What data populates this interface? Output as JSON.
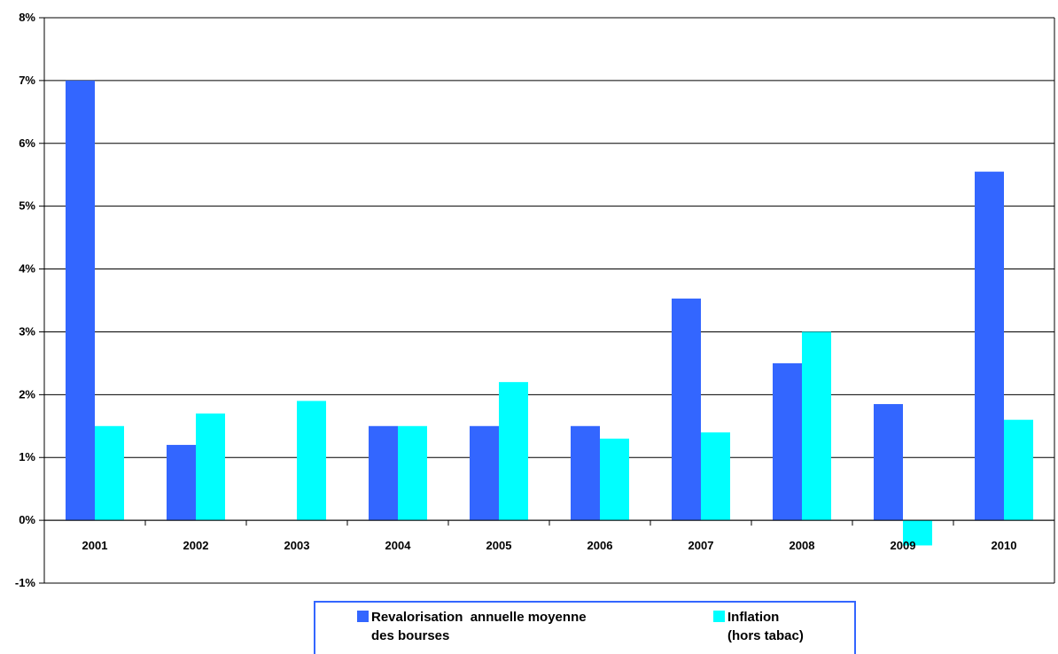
{
  "chart_data": {
    "type": "bar",
    "categories": [
      "2001",
      "2002",
      "2003",
      "2004",
      "2005",
      "2006",
      "2007",
      "2008",
      "2009",
      "2010"
    ],
    "series": [
      {
        "name": "Revalorisation  annuelle moyenne des bourses",
        "legend_lines": [
          "Revalorisation  annuelle moyenne",
          "des bourses"
        ],
        "color": "#3366ff",
        "values": [
          7.0,
          1.2,
          null,
          1.5,
          1.5,
          1.5,
          3.53,
          2.5,
          1.85,
          5.55
        ]
      },
      {
        "name": "Inflation (hors tabac)",
        "legend_lines": [
          "Inflation",
          "(hors tabac)"
        ],
        "color": "#00ffff",
        "values": [
          1.5,
          1.7,
          1.9,
          1.5,
          2.2,
          1.3,
          1.4,
          3.0,
          -0.4,
          1.6
        ]
      }
    ],
    "yticks": [
      "-1%",
      "0%",
      "1%",
      "2%",
      "3%",
      "4%",
      "5%",
      "6%",
      "7%",
      "8%"
    ],
    "ylim": [
      -1,
      8
    ],
    "grid": true,
    "legend_position": "bottom",
    "title": "",
    "xlabel": "",
    "ylabel": ""
  }
}
